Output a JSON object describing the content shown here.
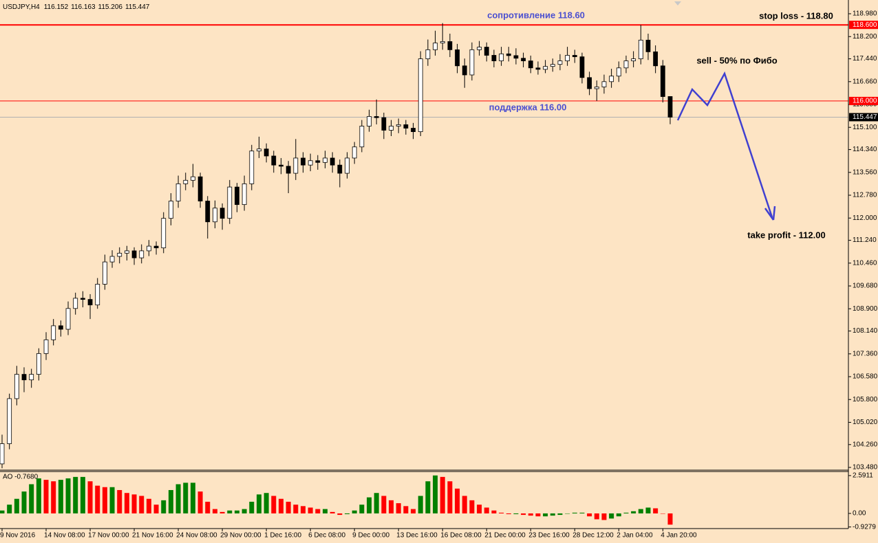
{
  "chart_data": [
    {
      "type": "candlestick",
      "symbol": "USDJPY,H4",
      "categories": [
        "9 Nov 2016",
        null,
        null,
        null,
        null,
        null,
        "14 Nov 08:00",
        null,
        null,
        null,
        null,
        null,
        "17 Nov 00:00",
        null,
        null,
        null,
        null,
        null,
        "21 Nov 16:00",
        null,
        null,
        null,
        null,
        null,
        "24 Nov 08:00",
        null,
        null,
        null,
        null,
        null,
        "29 Nov 00:00",
        null,
        null,
        null,
        null,
        null,
        "1 Dec 16:00",
        null,
        null,
        null,
        null,
        null,
        "6 Dec 08:00",
        null,
        null,
        null,
        null,
        null,
        "9 Dec 00:00",
        null,
        null,
        null,
        null,
        null,
        "13 Dec 16:00",
        null,
        null,
        null,
        null,
        null,
        "16 Dec 08:00",
        null,
        null,
        null,
        null,
        null,
        "21 Dec 00:00",
        null,
        null,
        null,
        null,
        null,
        "23 Dec 16:00",
        null,
        null,
        null,
        null,
        null,
        "28 Dec 12:00",
        null,
        null,
        null,
        null,
        null,
        "2 Jan 04:00",
        null,
        null,
        null,
        null,
        null,
        "4 Jan 20:00",
        null
      ],
      "open": [
        103.6,
        104.29,
        105.83,
        106.66,
        106.47,
        106.66,
        107.37,
        107.84,
        108.32,
        108.2,
        108.91,
        109.26,
        109.22,
        109.03,
        109.74,
        110.5,
        110.69,
        110.8,
        110.88,
        110.64,
        110.88,
        111.04,
        110.98,
        111.99,
        112.58,
        113.17,
        113.29,
        113.41,
        112.58,
        111.87,
        112.34,
        111.99,
        113.06,
        112.46,
        113.17,
        114.29,
        114.36,
        114.12,
        113.81,
        113.77,
        113.53,
        114.05,
        113.81,
        113.96,
        113.9,
        114.05,
        113.81,
        113.53,
        114.05,
        114.43,
        115.14,
        115.47,
        115.43,
        115.0,
        115.14,
        115.19,
        115.07,
        114.95,
        117.44,
        117.75,
        117.98,
        118.03,
        117.75,
        117.2,
        116.89,
        117.75,
        117.84,
        117.56,
        117.37,
        117.61,
        117.55,
        117.46,
        117.37,
        117.13,
        117.08,
        117.18,
        117.25,
        117.37,
        117.56,
        117.51,
        116.8,
        116.42,
        116.48,
        116.66,
        116.85,
        117.13,
        117.37,
        117.44,
        118.08,
        117.68,
        117.2,
        116.152
      ],
      "high": [
        104.6,
        106.0,
        106.95,
        106.9,
        106.85,
        107.55,
        108.1,
        108.55,
        108.5,
        109.15,
        109.45,
        109.5,
        109.4,
        109.95,
        110.75,
        110.9,
        111.0,
        111.05,
        111.0,
        111.1,
        111.25,
        111.2,
        112.2,
        112.85,
        113.45,
        113.55,
        113.85,
        113.55,
        112.75,
        112.6,
        112.5,
        113.3,
        113.2,
        113.45,
        114.5,
        114.78,
        114.55,
        114.3,
        114.05,
        113.95,
        114.7,
        114.25,
        114.2,
        114.15,
        114.3,
        114.25,
        114.0,
        114.25,
        114.6,
        115.35,
        115.7,
        116.05,
        115.6,
        115.35,
        115.4,
        115.35,
        115.25,
        117.7,
        118.1,
        118.4,
        118.66,
        118.3,
        117.95,
        117.45,
        118.0,
        118.05,
        118.0,
        117.75,
        117.85,
        117.85,
        117.8,
        117.65,
        117.55,
        117.35,
        117.4,
        117.45,
        117.6,
        117.85,
        117.75,
        117.65,
        117.0,
        116.7,
        116.9,
        117.1,
        117.35,
        117.55,
        117.7,
        118.6,
        118.3,
        117.9,
        117.4,
        116.163
      ],
      "low": [
        103.45,
        104.1,
        105.6,
        106.05,
        106.2,
        106.45,
        107.15,
        107.65,
        107.95,
        108.0,
        108.7,
        108.95,
        108.55,
        108.9,
        109.55,
        110.3,
        110.45,
        110.55,
        110.4,
        110.45,
        110.7,
        110.75,
        110.8,
        111.75,
        112.35,
        112.95,
        113.05,
        112.35,
        111.3,
        111.65,
        111.6,
        111.8,
        112.2,
        112.25,
        112.95,
        114.05,
        113.9,
        113.55,
        113.5,
        112.85,
        113.3,
        113.55,
        113.6,
        113.65,
        113.7,
        113.55,
        113.05,
        113.35,
        113.85,
        114.25,
        114.95,
        115.2,
        114.7,
        114.8,
        114.9,
        114.85,
        114.7,
        114.8,
        117.2,
        117.55,
        117.75,
        117.5,
        116.95,
        116.45,
        116.7,
        117.55,
        117.35,
        117.15,
        117.2,
        117.35,
        117.25,
        117.15,
        116.95,
        116.9,
        116.95,
        117.0,
        117.05,
        117.2,
        117.3,
        116.6,
        116.2,
        116.0,
        116.25,
        116.45,
        116.65,
        116.95,
        117.15,
        117.25,
        117.4,
        116.95,
        115.95,
        115.206
      ],
      "close": [
        104.29,
        105.83,
        106.66,
        106.47,
        106.66,
        107.37,
        107.84,
        108.32,
        108.2,
        108.91,
        109.26,
        109.22,
        109.03,
        109.74,
        110.5,
        110.69,
        110.8,
        110.88,
        110.64,
        110.88,
        111.04,
        110.98,
        111.99,
        112.58,
        113.17,
        113.29,
        113.41,
        112.58,
        111.87,
        112.34,
        111.99,
        113.06,
        112.46,
        113.17,
        114.29,
        114.36,
        114.12,
        113.81,
        113.77,
        113.53,
        114.05,
        113.81,
        113.96,
        113.9,
        114.05,
        113.81,
        113.53,
        114.05,
        114.43,
        115.14,
        115.47,
        115.43,
        115.0,
        115.14,
        115.19,
        115.07,
        114.95,
        117.44,
        117.75,
        117.98,
        118.03,
        117.75,
        117.2,
        116.89,
        117.75,
        117.84,
        117.56,
        117.37,
        117.61,
        117.55,
        117.46,
        117.37,
        117.13,
        117.08,
        117.18,
        117.25,
        117.37,
        117.56,
        117.51,
        116.8,
        116.42,
        116.48,
        116.66,
        116.85,
        117.13,
        117.37,
        117.44,
        118.08,
        117.68,
        117.2,
        116.15,
        115.447
      ],
      "bull_color": "#ffffff",
      "bear_color": "#000000",
      "ylim": [
        103.41,
        119.356
      ],
      "yticks": [
        {
          "value": 118.98,
          "label": "118.980"
        },
        {
          "value": 118.2,
          "label": "118.200"
        },
        {
          "value": 117.44,
          "label": "117.440"
        },
        {
          "value": 116.66,
          "label": "116.660"
        },
        {
          "value": 115.88,
          "label": "115.880"
        },
        {
          "value": 115.1,
          "label": "115.100"
        },
        {
          "value": 114.34,
          "label": "114.340"
        },
        {
          "value": 113.56,
          "label": "113.560"
        },
        {
          "value": 112.78,
          "label": "112.780"
        },
        {
          "value": 112,
          "label": "112.000"
        },
        {
          "value": 111.24,
          "label": "111.240"
        },
        {
          "value": 110.46,
          "label": "110.460"
        },
        {
          "value": 109.68,
          "label": "109.680"
        },
        {
          "value": 108.9,
          "label": "108.900"
        },
        {
          "value": 108.14,
          "label": "108.140"
        },
        {
          "value": 107.36,
          "label": "107.360"
        },
        {
          "value": 106.58,
          "label": "106.580"
        },
        {
          "value": 105.8,
          "label": "105.800"
        },
        {
          "value": 105.02,
          "label": "105.020"
        },
        {
          "value": 104.26,
          "label": "104.260"
        },
        {
          "value": 103.48,
          "label": "103.480"
        }
      ],
      "levels": [
        {
          "value": 118.6,
          "label": "118.600"
        },
        {
          "value": 116,
          "label": "116.000"
        }
      ],
      "level_color": "#ff0000",
      "annotations": [
        {
          "text": "сопротивление 118.60",
          "color": "#4b4fd0"
        },
        {
          "text": "поддержка 116.00",
          "color": "#4b4fd0"
        },
        {
          "text": "stop loss - 118.80",
          "color": "#000000"
        },
        {
          "text": "sell - 50% по Фибо",
          "color": "#000000"
        },
        {
          "text": "take profit - 112.00",
          "color": "#000000"
        }
      ]
    },
    {
      "type": "bar",
      "label": "AO -0.7680",
      "values": [
        0.2,
        0.6,
        1.0,
        1.5,
        2.0,
        2.4,
        2.3,
        2.2,
        2.3,
        2.4,
        2.5,
        2.5,
        2.2,
        1.9,
        1.8,
        1.8,
        1.6,
        1.4,
        1.3,
        1.2,
        1.0,
        0.6,
        0.9,
        1.6,
        2.0,
        2.1,
        2.1,
        1.5,
        0.8,
        0.3,
        0.1,
        0.2,
        0.2,
        0.3,
        0.8,
        1.3,
        1.4,
        1.2,
        1.0,
        0.8,
        0.6,
        0.5,
        0.4,
        0.3,
        0.3,
        0.1,
        -0.1,
        -0.05,
        0.2,
        0.6,
        1.1,
        1.4,
        1.2,
        0.9,
        0.7,
        0.5,
        0.3,
        1.2,
        2.2,
        2.6,
        2.5,
        2.2,
        1.7,
        1.2,
        0.9,
        0.6,
        0.4,
        0.2,
        0.05,
        -0.05,
        -0.05,
        -0.1,
        -0.15,
        -0.2,
        -0.2,
        -0.15,
        -0.1,
        0.0,
        0.05,
        0.05,
        -0.2,
        -0.4,
        -0.45,
        -0.35,
        -0.2,
        0.05,
        0.15,
        0.3,
        0.4,
        0.35,
        0.0,
        -0.768
      ],
      "up_color": "#008000",
      "down_color": "#ff0000",
      "ylim": [
        -0.99,
        2.87
      ],
      "yticks": [
        2.5911,
        {
          "value": 0,
          "label": "0.00"
        },
        -0.9279
      ]
    }
  ]
}
